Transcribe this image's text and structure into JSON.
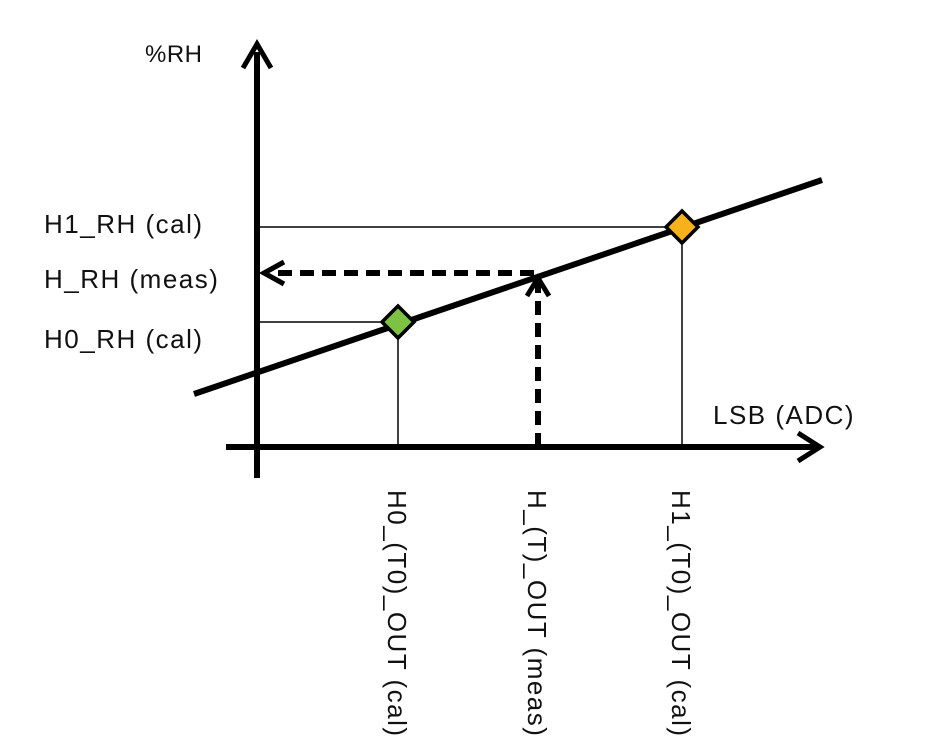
{
  "axes": {
    "y_title": "%RH",
    "x_title": "LSB (ADC)"
  },
  "y_labels": {
    "h1_rh": "H1_RH (cal)",
    "h_rh": "H_RH (meas)",
    "h0_rh": "H0_RH (cal)"
  },
  "x_labels": {
    "h0_out": "H0_(T0)_OUT (cal)",
    "h_out": "H_(T)_OUT (meas)",
    "h1_out": "H1_(T0)_OUT (cal)"
  },
  "points": {
    "h0_color": "#7dc242",
    "h1_color": "#f7b21b"
  },
  "colors": {
    "line": "#000000"
  }
}
